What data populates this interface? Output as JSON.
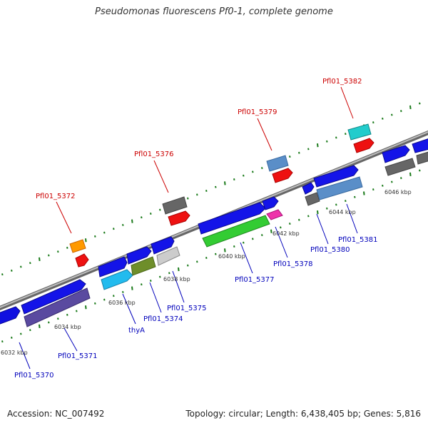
{
  "title": "Pseudomonas fluorescens Pf0-1, complete genome",
  "footer": {
    "accession": "Accession: NC_007492",
    "summary": "Topology: circular; Length: 6,438,405 bp; Genes: 5,816"
  },
  "colors": {
    "backbone": "#888888",
    "ticks": "#1a7a1a",
    "label_red": "#cc0000",
    "label_blue": "#0000bb"
  },
  "scale_ticks": [
    "6032 kbp",
    "6034 kbp",
    "6036 kbp",
    "6038 kbp",
    "6040 kbp",
    "6042 kbp",
    "6044 kbp",
    "6046 kbp"
  ],
  "gene_labels_top": [
    "Pfl01_5372",
    "Pfl01_5376",
    "Pfl01_5379",
    "Pfl01_5382"
  ],
  "gene_labels_bottom": [
    "Pfl01_5370",
    "Pfl01_5371",
    "thyA",
    "Pfl01_5374",
    "Pfl01_5375",
    "Pfl01_5377",
    "Pfl01_5378",
    "Pfl01_5380",
    "Pfl01_5381"
  ]
}
